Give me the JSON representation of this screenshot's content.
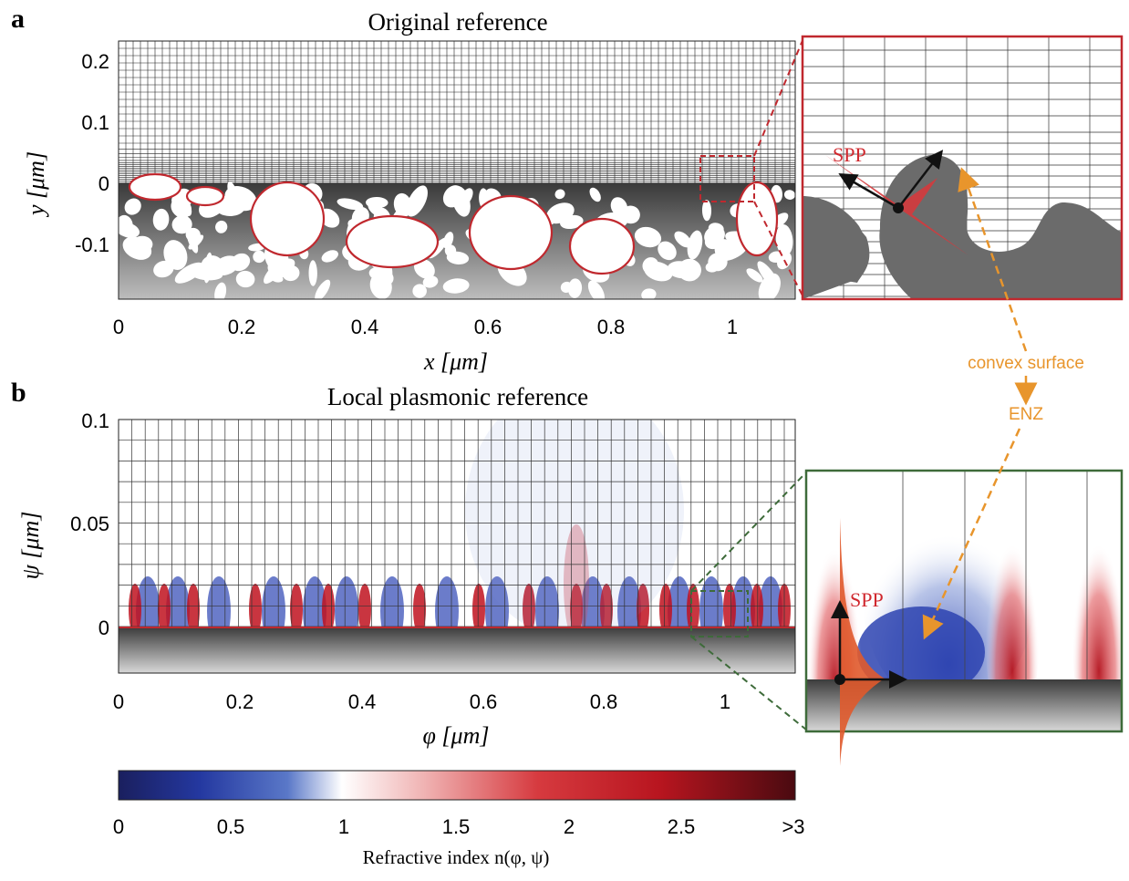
{
  "panel_a": {
    "letter": "a",
    "title": "Original reference",
    "y_ticks": [
      "0.2",
      "0.1",
      "0",
      "-0.1"
    ],
    "x_ticks": [
      "0",
      "0.2",
      "0.4",
      "0.6",
      "0.8",
      "1"
    ],
    "y_label": "y [μm]",
    "x_label": "x [μm]",
    "inset_label": "SPP"
  },
  "panel_b": {
    "letter": "b",
    "title": "Local plasmonic reference",
    "y_ticks": [
      "0.1",
      "0.05",
      "0"
    ],
    "x_ticks": [
      "0",
      "0.2",
      "0.4",
      "0.6",
      "0.8",
      "1"
    ],
    "y_label": "ψ [μm]",
    "x_label": "φ [μm]",
    "inset_label": "SPP"
  },
  "annotations": {
    "convex": "convex surface",
    "enz": "ENZ"
  },
  "colorbar": {
    "ticks": [
      "0",
      "0.5",
      "1",
      "1.5",
      "2",
      "2.5",
      ">3"
    ],
    "label": "Refractive index n(φ, ψ)"
  },
  "colors": {
    "red_outline": "#c0282e",
    "green_outline": "#3e6b3a",
    "orange": "#e8952c",
    "blue": "#2d43b0",
    "red": "#c0121f"
  }
}
